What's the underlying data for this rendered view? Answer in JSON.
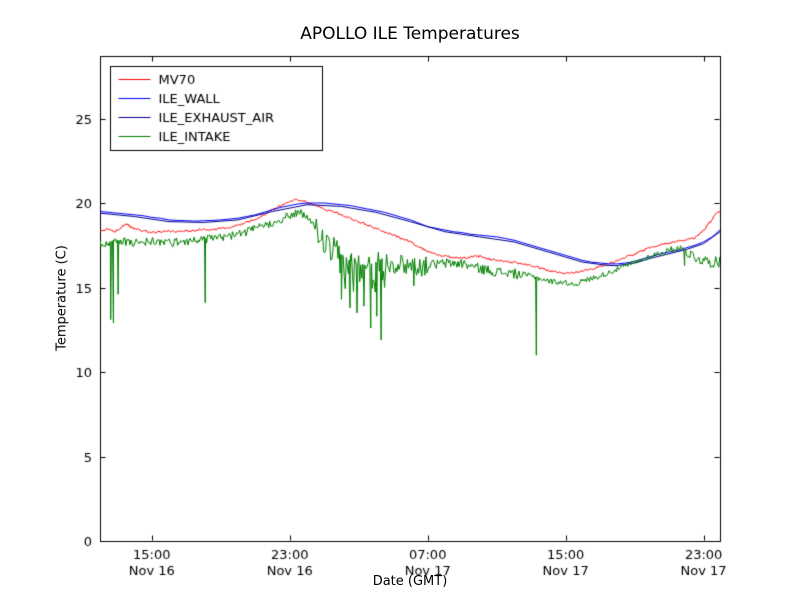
{
  "chart_data": {
    "type": "line",
    "title": "APOLLO ILE Temperatures",
    "xlabel": "Date (GMT)",
    "ylabel": "Temperature (C)",
    "x_unit": "hours since Nov 16 00:00 GMT",
    "xlim": [
      12,
      47.95
    ],
    "ylim": [
      0,
      28.7
    ],
    "yticks": [
      0,
      5,
      10,
      15,
      20,
      25
    ],
    "xticks": [
      {
        "value": 15,
        "time": "15:00",
        "date": "Nov 16"
      },
      {
        "value": 23,
        "time": "23:00",
        "date": "Nov 16"
      },
      {
        "value": 31,
        "time": "07:00",
        "date": "Nov 17"
      },
      {
        "value": 39,
        "time": "15:00",
        "date": "Nov 17"
      },
      {
        "value": 47,
        "time": "23:00",
        "date": "Nov 17"
      }
    ],
    "legend_position": "upper-left",
    "frame_color": "#000000",
    "background": "#ffffff",
    "series": [
      {
        "name": "MV70",
        "color": "#ff0000",
        "noise_regions": [
          [
            12,
            47.95,
            0.06,
            0.5
          ]
        ],
        "points": [
          [
            12,
            18.3
          ],
          [
            12.4,
            18.45
          ],
          [
            12.8,
            18.3
          ],
          [
            13.2,
            18.5
          ],
          [
            13.5,
            18.8
          ],
          [
            13.8,
            18.55
          ],
          [
            14.2,
            18.4
          ],
          [
            14.6,
            18.35
          ],
          [
            15,
            18.25
          ],
          [
            15.5,
            18.3
          ],
          [
            16,
            18.35
          ],
          [
            16.5,
            18.3
          ],
          [
            17,
            18.35
          ],
          [
            17.5,
            18.4
          ],
          [
            18,
            18.45
          ],
          [
            18.5,
            18.4
          ],
          [
            19,
            18.5
          ],
          [
            19.5,
            18.55
          ],
          [
            20,
            18.7
          ],
          [
            20.5,
            18.85
          ],
          [
            21,
            19.05
          ],
          [
            21.5,
            19.3
          ],
          [
            22,
            19.6
          ],
          [
            22.5,
            19.85
          ],
          [
            23,
            20.1
          ],
          [
            23.4,
            20.2
          ],
          [
            23.7,
            20.15
          ],
          [
            24,
            20.05
          ],
          [
            24.5,
            19.85
          ],
          [
            25,
            19.65
          ],
          [
            25.5,
            19.5
          ],
          [
            26,
            19.3
          ],
          [
            26.5,
            19.1
          ],
          [
            27,
            18.9
          ],
          [
            27.5,
            18.7
          ],
          [
            28,
            18.5
          ],
          [
            28.5,
            18.3
          ],
          [
            29,
            18.1
          ],
          [
            29.5,
            17.9
          ],
          [
            30,
            17.7
          ],
          [
            30.5,
            17.4
          ],
          [
            31,
            17.15
          ],
          [
            31.5,
            16.95
          ],
          [
            32,
            16.85
          ],
          [
            32.5,
            16.8
          ],
          [
            33,
            16.75
          ],
          [
            33.5,
            16.8
          ],
          [
            34,
            16.85
          ],
          [
            34.5,
            16.7
          ],
          [
            35,
            16.6
          ],
          [
            35.5,
            16.55
          ],
          [
            36,
            16.5
          ],
          [
            36.5,
            16.4
          ],
          [
            37,
            16.3
          ],
          [
            37.5,
            16.15
          ],
          [
            38,
            16.0
          ],
          [
            38.5,
            15.9
          ],
          [
            39,
            15.85
          ],
          [
            39.5,
            15.9
          ],
          [
            40,
            16.0
          ],
          [
            40.5,
            16.1
          ],
          [
            41,
            16.25
          ],
          [
            41.5,
            16.4
          ],
          [
            42,
            16.6
          ],
          [
            42.5,
            16.8
          ],
          [
            43,
            17.0
          ],
          [
            43.5,
            17.2
          ],
          [
            44,
            17.4
          ],
          [
            44.5,
            17.55
          ],
          [
            45,
            17.65
          ],
          [
            45.5,
            17.75
          ],
          [
            46,
            17.8
          ],
          [
            46.5,
            17.95
          ],
          [
            47,
            18.4
          ],
          [
            47.4,
            18.9
          ],
          [
            47.7,
            19.35
          ],
          [
            47.95,
            19.5
          ]
        ]
      },
      {
        "name": "ILE_WALL",
        "color": "#0000ff",
        "points": [
          [
            12,
            19.5
          ],
          [
            13,
            19.4
          ],
          [
            13.5,
            19.35
          ],
          [
            14,
            19.3
          ],
          [
            14.5,
            19.25
          ],
          [
            15,
            19.15
          ],
          [
            15.5,
            19.1
          ],
          [
            16,
            19.0
          ],
          [
            16.5,
            18.97
          ],
          [
            17,
            18.95
          ],
          [
            17.5,
            18.93
          ],
          [
            18,
            18.95
          ],
          [
            18.5,
            18.97
          ],
          [
            19,
            19.0
          ],
          [
            19.5,
            19.05
          ],
          [
            20,
            19.1
          ],
          [
            20.5,
            19.2
          ],
          [
            21,
            19.3
          ],
          [
            21.5,
            19.45
          ],
          [
            22,
            19.6
          ],
          [
            22.5,
            19.75
          ],
          [
            23,
            19.85
          ],
          [
            23.5,
            19.95
          ],
          [
            24,
            20.0
          ],
          [
            24.5,
            20.0
          ],
          [
            25,
            20.0
          ],
          [
            25.5,
            19.95
          ],
          [
            26,
            19.9
          ],
          [
            26.5,
            19.85
          ],
          [
            27,
            19.75
          ],
          [
            27.5,
            19.65
          ],
          [
            28,
            19.55
          ],
          [
            28.5,
            19.45
          ],
          [
            29,
            19.3
          ],
          [
            29.5,
            19.15
          ],
          [
            30,
            19.0
          ],
          [
            30.5,
            18.8
          ],
          [
            31,
            18.6
          ],
          [
            31.5,
            18.5
          ],
          [
            32,
            18.4
          ],
          [
            32.5,
            18.3
          ],
          [
            33,
            18.25
          ],
          [
            33.5,
            18.15
          ],
          [
            34,
            18.1
          ],
          [
            34.5,
            18.05
          ],
          [
            35,
            18.0
          ],
          [
            35.5,
            17.9
          ],
          [
            36,
            17.8
          ],
          [
            36.5,
            17.65
          ],
          [
            37,
            17.5
          ],
          [
            37.5,
            17.35
          ],
          [
            38,
            17.2
          ],
          [
            38.5,
            17.05
          ],
          [
            39,
            16.9
          ],
          [
            39.5,
            16.75
          ],
          [
            40,
            16.6
          ],
          [
            40.5,
            16.5
          ],
          [
            41,
            16.45
          ],
          [
            41.5,
            16.4
          ],
          [
            42,
            16.4
          ],
          [
            42.5,
            16.45
          ],
          [
            43,
            16.55
          ],
          [
            43.5,
            16.7
          ],
          [
            44,
            16.85
          ],
          [
            44.5,
            17.0
          ],
          [
            45,
            17.1
          ],
          [
            45.5,
            17.2
          ],
          [
            46,
            17.35
          ],
          [
            46.5,
            17.5
          ],
          [
            47,
            17.7
          ],
          [
            47.5,
            18.0
          ],
          [
            47.95,
            18.4
          ]
        ]
      },
      {
        "name": "ILE_EXHAUST_AIR",
        "color": "#00008b",
        "points": [
          [
            12,
            19.4
          ],
          [
            14,
            19.2
          ],
          [
            16,
            18.9
          ],
          [
            18,
            18.85
          ],
          [
            20,
            19.0
          ],
          [
            22,
            19.5
          ],
          [
            24,
            19.9
          ],
          [
            26,
            19.8
          ],
          [
            28,
            19.45
          ],
          [
            30,
            18.9
          ],
          [
            32,
            18.3
          ],
          [
            34,
            18.0
          ],
          [
            36,
            17.7
          ],
          [
            38,
            17.1
          ],
          [
            40,
            16.5
          ],
          [
            41.5,
            16.3
          ],
          [
            42,
            16.3
          ],
          [
            43,
            16.45
          ],
          [
            44,
            16.75
          ],
          [
            45,
            17.0
          ],
          [
            46,
            17.25
          ],
          [
            47,
            17.6
          ],
          [
            47.95,
            18.3
          ]
        ]
      },
      {
        "name": "ILE_INTAKE",
        "color": "#008000",
        "noise_regions": [
          [
            12,
            23.8,
            0.25,
            0.6
          ],
          [
            23.8,
            24.4,
            0.18,
            0.6
          ],
          [
            24.4,
            25.4,
            0.8,
            0.7
          ],
          [
            25.4,
            28.6,
            1.3,
            0.72
          ],
          [
            28.6,
            31,
            0.6,
            0.65
          ],
          [
            31,
            36.5,
            0.3,
            0.62
          ],
          [
            36.5,
            44,
            0.16,
            0.55
          ],
          [
            44,
            46,
            0.2,
            0.55
          ],
          [
            46,
            47.95,
            0.33,
            0.65
          ]
        ],
        "spikes": [
          [
            12.62,
            13.1
          ],
          [
            12.78,
            12.9
          ],
          [
            13.05,
            14.6
          ],
          [
            18.1,
            14.1
          ],
          [
            26.0,
            14.3
          ],
          [
            26.5,
            13.8
          ],
          [
            26.9,
            13.5
          ],
          [
            27.3,
            13.9
          ],
          [
            27.7,
            12.6
          ],
          [
            28.05,
            13.3
          ],
          [
            28.3,
            11.9
          ],
          [
            30.2,
            15.1
          ],
          [
            37.3,
            11.0
          ],
          [
            45.9,
            16.3
          ]
        ],
        "points": [
          [
            12,
            17.6
          ],
          [
            13,
            17.8
          ],
          [
            14,
            17.7
          ],
          [
            15,
            17.8
          ],
          [
            16,
            17.7
          ],
          [
            17,
            17.8
          ],
          [
            18,
            17.9
          ],
          [
            19,
            18.0
          ],
          [
            20,
            18.2
          ],
          [
            21,
            18.5
          ],
          [
            22,
            18.9
          ],
          [
            23,
            19.3
          ],
          [
            23.5,
            19.5
          ],
          [
            24,
            19.2
          ],
          [
            24.5,
            18.7
          ],
          [
            25,
            18.0
          ],
          [
            25.5,
            17.3
          ],
          [
            26,
            16.9
          ],
          [
            26.5,
            16.6
          ],
          [
            27,
            16.4
          ],
          [
            27.5,
            16.3
          ],
          [
            28,
            16.5
          ],
          [
            28.5,
            16.8
          ],
          [
            29,
            16.6
          ],
          [
            30,
            16.5
          ],
          [
            31,
            16.4
          ],
          [
            32,
            16.5
          ],
          [
            33,
            16.5
          ],
          [
            34,
            16.2
          ],
          [
            35,
            16.0
          ],
          [
            36,
            15.9
          ],
          [
            37,
            15.7
          ],
          [
            38,
            15.4
          ],
          [
            39,
            15.3
          ],
          [
            39.5,
            15.2
          ],
          [
            40,
            15.4
          ],
          [
            41,
            15.7
          ],
          [
            42,
            16.1
          ],
          [
            43,
            16.5
          ],
          [
            44,
            16.9
          ],
          [
            45,
            17.2
          ],
          [
            45.5,
            17.4
          ],
          [
            46,
            17.2
          ],
          [
            46.5,
            16.9
          ],
          [
            47,
            16.7
          ],
          [
            47.5,
            16.6
          ],
          [
            47.95,
            16.6
          ]
        ]
      }
    ]
  }
}
